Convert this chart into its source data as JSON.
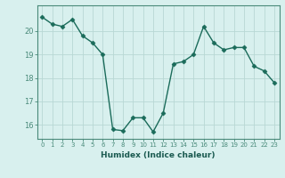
{
  "x": [
    0,
    1,
    2,
    3,
    4,
    5,
    6,
    7,
    8,
    9,
    10,
    11,
    12,
    13,
    14,
    15,
    16,
    17,
    18,
    19,
    20,
    21,
    22,
    23
  ],
  "y": [
    20.6,
    20.3,
    20.2,
    20.5,
    19.8,
    19.5,
    19.0,
    15.8,
    15.75,
    16.3,
    16.3,
    15.7,
    16.5,
    18.6,
    18.7,
    19.0,
    20.2,
    19.5,
    19.2,
    19.3,
    19.3,
    18.5,
    18.3,
    17.8
  ],
  "line_color": "#1a6b5a",
  "marker": "D",
  "marker_size": 2.5,
  "bg_color": "#d8f0ee",
  "grid_color": "#b8d8d4",
  "xlabel": "Humidex (Indice chaleur)",
  "ylim": [
    15.4,
    21.1
  ],
  "yticks": [
    16,
    17,
    18,
    19,
    20
  ],
  "xticks": [
    0,
    1,
    2,
    3,
    4,
    5,
    6,
    7,
    8,
    9,
    10,
    11,
    12,
    13,
    14,
    15,
    16,
    17,
    18,
    19,
    20,
    21,
    22,
    23
  ],
  "axis_color": "#4a8a7a",
  "font_color": "#1a5a50"
}
